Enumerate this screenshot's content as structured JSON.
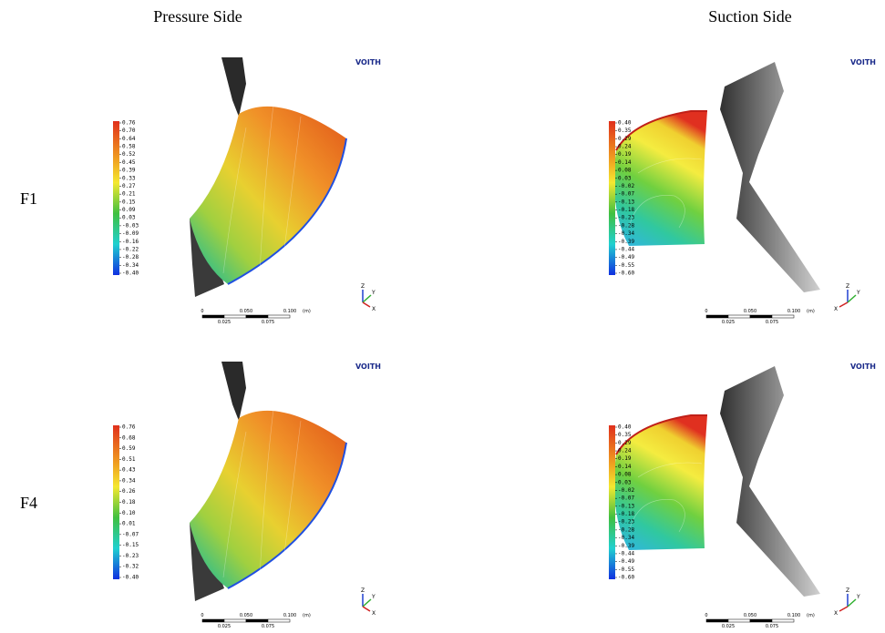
{
  "header": {
    "columns": [
      "Pressure Side",
      "Suction Side"
    ]
  },
  "rows": [
    "F1",
    "F4"
  ],
  "panels": [
    {
      "logo": "VOITH",
      "colorbar": [
        "0.76",
        "0.70",
        "0.64",
        "0.58",
        "0.52",
        "0.45",
        "0.39",
        "0.33",
        "0.27",
        "0.21",
        "0.15",
        "0.09",
        "0.03",
        "-0.03",
        "-0.09",
        "-0.16",
        "-0.22",
        "-0.28",
        "-0.34",
        "-0.40"
      ],
      "scale": [
        "0",
        "0.050",
        "0.100",
        "(m)",
        "0.025",
        "0.075"
      ],
      "axes": [
        "Z",
        "Y",
        "X"
      ]
    },
    {
      "logo": "VOITH",
      "colorbar": [
        "0.40",
        "0.35",
        "0.29",
        "0.24",
        "0.19",
        "0.14",
        "0.08",
        "0.03",
        "-0.02",
        "-0.07",
        "-0.13",
        "-0.18",
        "-0.23",
        "-0.28",
        "-0.34",
        "-0.39",
        "-0.44",
        "-0.49",
        "-0.55",
        "-0.60"
      ],
      "scale": [
        "0",
        "0.050",
        "0.100",
        "(m)",
        "0.025",
        "0.075"
      ],
      "axes": [
        "Z",
        "Y",
        "X"
      ]
    },
    {
      "logo": "VOITH",
      "colorbar": [
        "0.76",
        "0.68",
        "0.59",
        "0.51",
        "0.43",
        "0.34",
        "0.26",
        "0.18",
        "0.10",
        "0.01",
        "-0.07",
        "-0.15",
        "-0.23",
        "-0.32",
        "-0.40"
      ],
      "scale": [
        "0",
        "0.050",
        "0.100",
        "(m)",
        "0.025",
        "0.075"
      ],
      "axes": [
        "Z",
        "Y",
        "X"
      ]
    },
    {
      "logo": "VOITH",
      "colorbar": [
        "0.40",
        "0.35",
        "0.29",
        "0.24",
        "0.19",
        "0.14",
        "0.08",
        "0.03",
        "-0.02",
        "-0.07",
        "-0.13",
        "-0.18",
        "-0.23",
        "-0.28",
        "-0.34",
        "-0.39",
        "-0.44",
        "-0.49",
        "-0.55",
        "-0.60"
      ],
      "scale": [
        "0",
        "0.050",
        "0.100",
        "(m)",
        "0.025",
        "0.075"
      ],
      "axes": [
        "Z",
        "Y",
        "X"
      ]
    }
  ]
}
